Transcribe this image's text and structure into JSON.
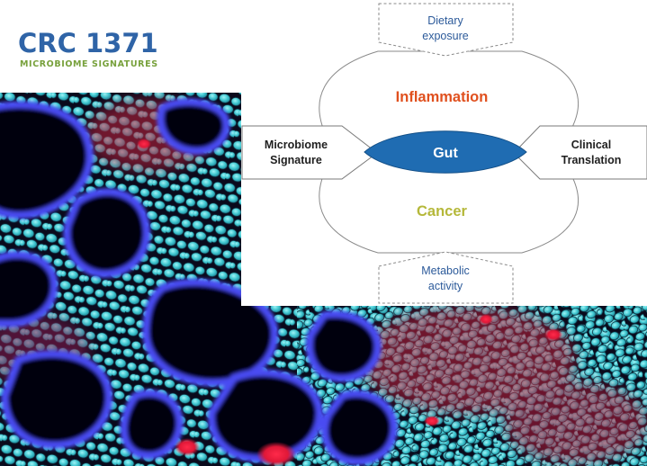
{
  "logo": {
    "title": "CRC 1371",
    "subtitle": "MICROBIOME SIGNATURES"
  },
  "diagram": {
    "top_box": {
      "line1": "Dietary",
      "line2": "exposure"
    },
    "upper_lobe": "Inflammation",
    "center": "Gut",
    "lower_lobe": "Cancer",
    "left_arrow": {
      "line1": "Microbiome",
      "line2": "Signature"
    },
    "right_arrow": {
      "line1": "Clinical",
      "line2": "Translation"
    },
    "bottom_box": {
      "line1": "Metabolic",
      "line2": "activity"
    }
  },
  "colors": {
    "brand_blue": "#2f64a7",
    "brand_green": "#78a13c",
    "inflammation": "#e0501e",
    "cancer": "#b5b83a",
    "gut": "#1f6cb2",
    "box_text": "#2c5a9a",
    "nuclei": "#3fc6cf",
    "membrane": "#3a3fe0",
    "stain_red": "#e02a3d"
  },
  "background_image": "fluorescence-microscopy-tissue"
}
